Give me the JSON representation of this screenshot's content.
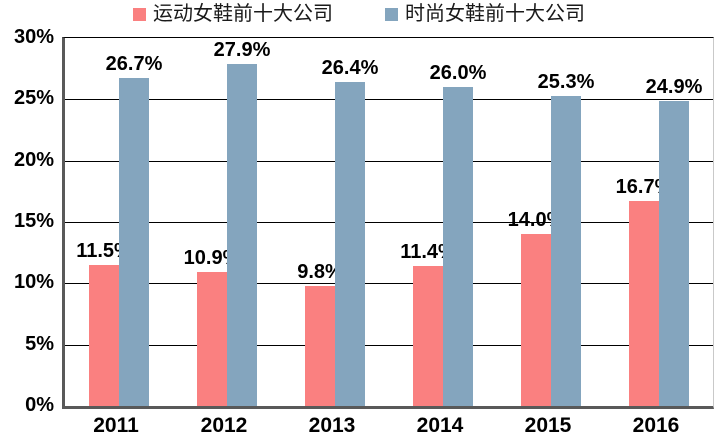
{
  "legend": {
    "items": [
      {
        "label": "运动女鞋前十大公司",
        "color": "#fa8080"
      },
      {
        "label": "时尚女鞋前十大公司",
        "color": "#84a5be"
      }
    ]
  },
  "chart_data": {
    "type": "bar",
    "title": "",
    "categories": [
      "2011",
      "2012",
      "2013",
      "2014",
      "2015",
      "2016"
    ],
    "series": [
      {
        "name": "运动女鞋前十大公司",
        "color": "#fa8080",
        "values": [
          11.5,
          10.9,
          9.8,
          11.4,
          14.0,
          16.7
        ],
        "labels": [
          "11.5%",
          "10.9%",
          "9.8%",
          "11.4%",
          "14.0%",
          "16.7%"
        ]
      },
      {
        "name": "时尚女鞋前十大公司",
        "color": "#84a5be",
        "values": [
          26.7,
          27.9,
          26.4,
          26.0,
          25.3,
          24.9
        ],
        "labels": [
          "26.7%",
          "27.9%",
          "26.4%",
          "26.0%",
          "25.3%",
          "24.9%"
        ]
      }
    ],
    "xlabel": "",
    "ylabel": "",
    "ylim": [
      0,
      30
    ],
    "ytick_step": 5,
    "yticks": [
      "0%",
      "5%",
      "10%",
      "15%",
      "20%",
      "25%",
      "30%"
    ],
    "grid": true,
    "legend_position": "top",
    "colors": {
      "grid": "#000000",
      "axis": "#595959",
      "text": "#000000"
    }
  }
}
